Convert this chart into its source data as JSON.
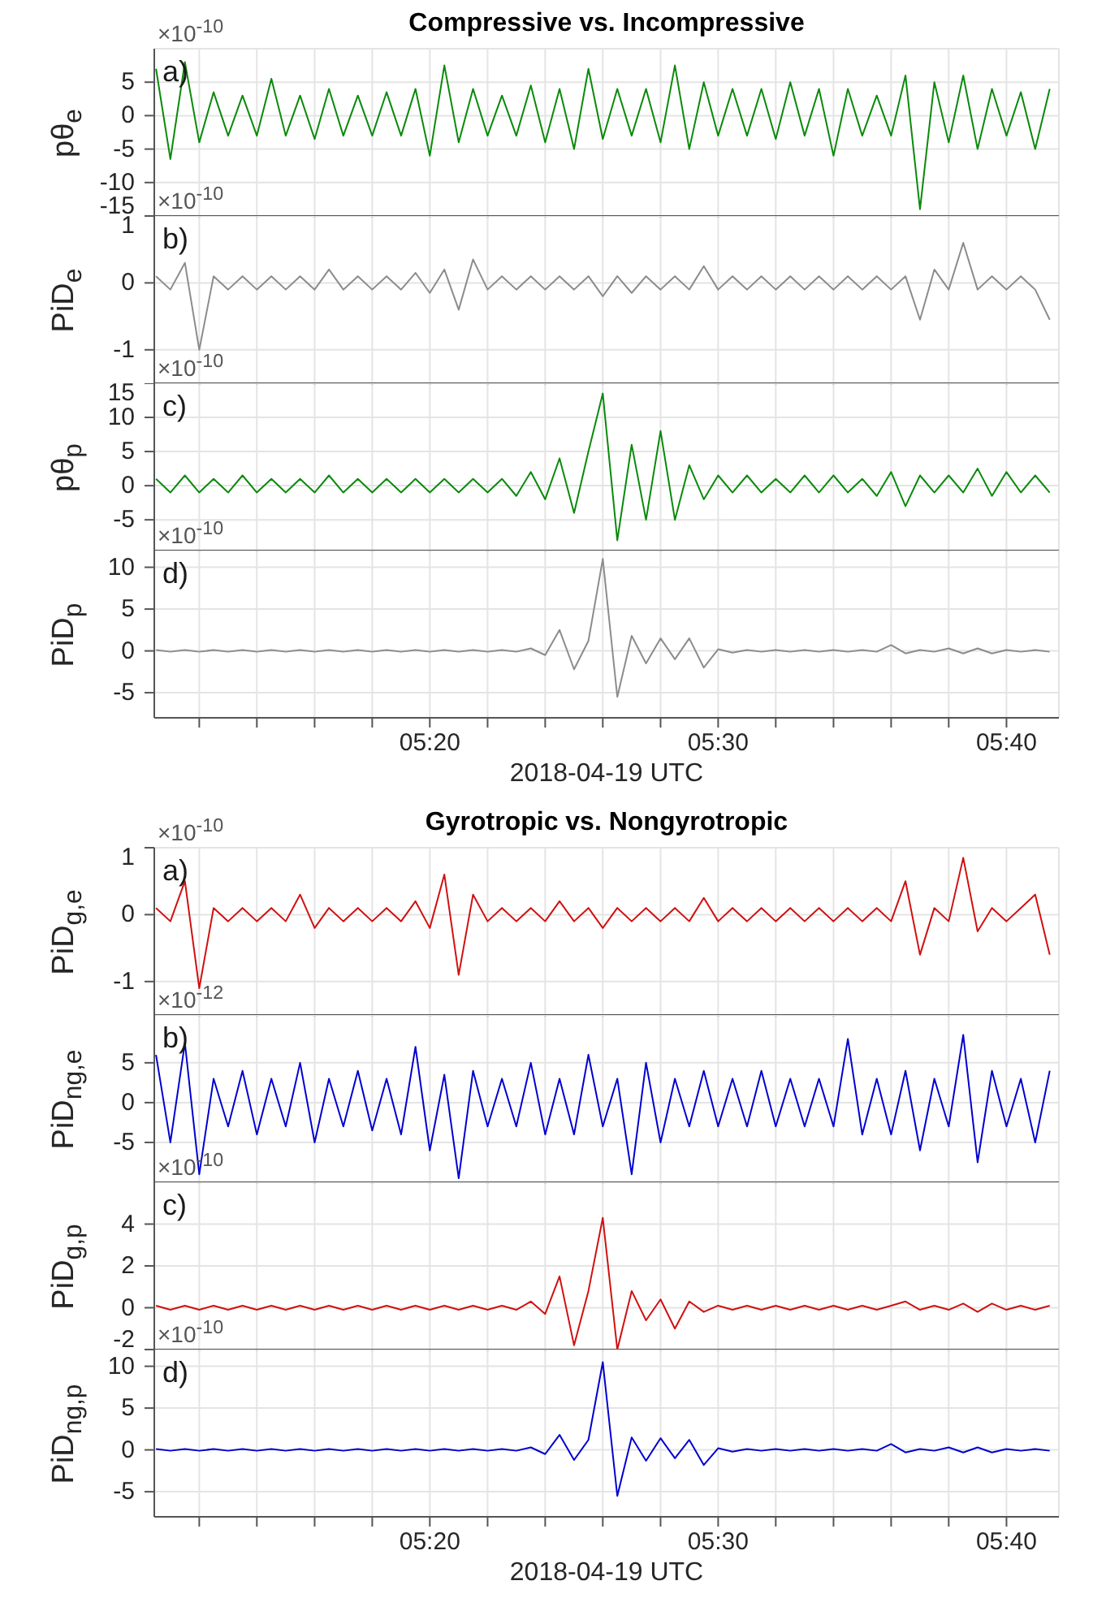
{
  "chart_data": [
    {
      "type": "line",
      "title": "Compressive vs. Incompressive",
      "ylabel": "pθ$_{e}$",
      "annotations": [
        "a)",
        "×10$^{-10}$"
      ],
      "grid": true,
      "tick_labels": "y",
      "xlim": [
        5.174,
        5.697
      ],
      "ylim": [
        -15,
        10
      ],
      "yticks": [
        -15,
        -10,
        -5,
        0,
        5
      ],
      "xticks": [
        {
          "value": 5.2,
          "label": null
        },
        {
          "value": 5.2333,
          "label": null
        },
        {
          "value": 5.2667,
          "label": null
        },
        {
          "value": 5.3,
          "label": null
        },
        {
          "value": 5.3333,
          "label": null
        },
        {
          "value": 5.3667,
          "label": null
        },
        {
          "value": 5.4,
          "label": null
        },
        {
          "value": 5.4333,
          "label": null
        },
        {
          "value": 5.4667,
          "label": null
        },
        {
          "value": 5.5,
          "label": null
        },
        {
          "value": 5.5333,
          "label": null
        },
        {
          "value": 5.5667,
          "label": null
        },
        {
          "value": 5.6,
          "label": null
        },
        {
          "value": 5.6333,
          "label": null
        },
        {
          "value": 5.6667,
          "label": null
        }
      ],
      "x": [
        5.175,
        5.1833,
        5.1917,
        5.2,
        5.2083,
        5.2167,
        5.225,
        5.2333,
        5.2417,
        5.25,
        5.2583,
        5.2667,
        5.275,
        5.2833,
        5.2917,
        5.3,
        5.3083,
        5.3167,
        5.325,
        5.3333,
        5.3417,
        5.35,
        5.3583,
        5.3667,
        5.375,
        5.3833,
        5.3917,
        5.4,
        5.4083,
        5.4167,
        5.425,
        5.4333,
        5.4417,
        5.45,
        5.4583,
        5.4667,
        5.475,
        5.4833,
        5.4917,
        5.5,
        5.5083,
        5.5167,
        5.525,
        5.5333,
        5.5417,
        5.55,
        5.5583,
        5.5667,
        5.575,
        5.5833,
        5.5917,
        5.6,
        5.6083,
        5.6167,
        5.625,
        5.6333,
        5.6417,
        5.65,
        5.6583,
        5.6667,
        5.675,
        5.6833,
        5.6917
      ],
      "series": [
        {
          "color": "#0a8a0a",
          "values": [
            7,
            -6.5,
            8,
            -4,
            3.5,
            -3,
            3,
            -3,
            5.5,
            -3,
            3,
            -3.5,
            4,
            -3,
            3,
            -3,
            3.5,
            -3,
            4,
            -6,
            7.5,
            -4,
            4,
            -3,
            3,
            -3,
            4.5,
            -4,
            4,
            -5,
            7,
            -3.5,
            4,
            -3,
            4,
            -4,
            7.5,
            -5,
            5,
            -3,
            4,
            -3,
            4,
            -3.5,
            5,
            -3,
            4,
            -6,
            4,
            -3,
            3,
            -3,
            6,
            -14,
            5,
            -4,
            6,
            -5,
            4,
            -3,
            3.5,
            -5,
            4
          ]
        }
      ]
    },
    {
      "type": "line",
      "ylabel": "PiD$_{e}$",
      "annotations": [
        "b)",
        "×10$^{-10}$"
      ],
      "grid": true,
      "tick_labels": "y",
      "xlim": [
        5.174,
        5.697
      ],
      "ylim": [
        -1.5,
        1
      ],
      "yticks": [
        -1,
        0,
        1
      ],
      "xticks": [
        {
          "value": 5.2,
          "label": null
        },
        {
          "value": 5.2333,
          "label": null
        },
        {
          "value": 5.2667,
          "label": null
        },
        {
          "value": 5.3,
          "label": null
        },
        {
          "value": 5.3333,
          "label": null
        },
        {
          "value": 5.3667,
          "label": null
        },
        {
          "value": 5.4,
          "label": null
        },
        {
          "value": 5.4333,
          "label": null
        },
        {
          "value": 5.4667,
          "label": null
        },
        {
          "value": 5.5,
          "label": null
        },
        {
          "value": 5.5333,
          "label": null
        },
        {
          "value": 5.5667,
          "label": null
        },
        {
          "value": 5.6,
          "label": null
        },
        {
          "value": 5.6333,
          "label": null
        },
        {
          "value": 5.6667,
          "label": null
        }
      ],
      "x": [
        5.175,
        5.1833,
        5.1917,
        5.2,
        5.2083,
        5.2167,
        5.225,
        5.2333,
        5.2417,
        5.25,
        5.2583,
        5.2667,
        5.275,
        5.2833,
        5.2917,
        5.3,
        5.3083,
        5.3167,
        5.325,
        5.3333,
        5.3417,
        5.35,
        5.3583,
        5.3667,
        5.375,
        5.3833,
        5.3917,
        5.4,
        5.4083,
        5.4167,
        5.425,
        5.4333,
        5.4417,
        5.45,
        5.4583,
        5.4667,
        5.475,
        5.4833,
        5.4917,
        5.5,
        5.5083,
        5.5167,
        5.525,
        5.5333,
        5.5417,
        5.55,
        5.5583,
        5.5667,
        5.575,
        5.5833,
        5.5917,
        5.6,
        5.6083,
        5.6167,
        5.625,
        5.6333,
        5.6417,
        5.65,
        5.6583,
        5.6667,
        5.675,
        5.6833,
        5.6917
      ],
      "series": [
        {
          "color": "#8c8c8c",
          "values": [
            0.1,
            -0.1,
            0.3,
            -1,
            0.1,
            -0.1,
            0.1,
            -0.1,
            0.1,
            -0.1,
            0.1,
            -0.1,
            0.2,
            -0.1,
            0.1,
            -0.1,
            0.1,
            -0.1,
            0.15,
            -0.15,
            0.2,
            -0.4,
            0.35,
            -0.1,
            0.1,
            -0.1,
            0.1,
            -0.1,
            0.1,
            -0.1,
            0.1,
            -0.2,
            0.1,
            -0.15,
            0.1,
            -0.1,
            0.1,
            -0.1,
            0.25,
            -0.1,
            0.1,
            -0.1,
            0.1,
            -0.1,
            0.1,
            -0.1,
            0.1,
            -0.1,
            0.1,
            -0.1,
            0.1,
            -0.1,
            0.1,
            -0.55,
            0.2,
            -0.1,
            0.6,
            -0.1,
            0.1,
            -0.1,
            0.1,
            -0.1,
            -0.55
          ]
        }
      ]
    },
    {
      "type": "line",
      "ylabel": "pθ$_{p}$",
      "annotations": [
        "c)",
        "×10$^{-10}$"
      ],
      "grid": true,
      "tick_labels": "y",
      "xlim": [
        5.174,
        5.697
      ],
      "ylim": [
        -9.5,
        15
      ],
      "yticks": [
        -5,
        0,
        5,
        10,
        15
      ],
      "xticks": [
        {
          "value": 5.2,
          "label": null
        },
        {
          "value": 5.2333,
          "label": null
        },
        {
          "value": 5.2667,
          "label": null
        },
        {
          "value": 5.3,
          "label": null
        },
        {
          "value": 5.3333,
          "label": null
        },
        {
          "value": 5.3667,
          "label": null
        },
        {
          "value": 5.4,
          "label": null
        },
        {
          "value": 5.4333,
          "label": null
        },
        {
          "value": 5.4667,
          "label": null
        },
        {
          "value": 5.5,
          "label": null
        },
        {
          "value": 5.5333,
          "label": null
        },
        {
          "value": 5.5667,
          "label": null
        },
        {
          "value": 5.6,
          "label": null
        },
        {
          "value": 5.6333,
          "label": null
        },
        {
          "value": 5.6667,
          "label": null
        }
      ],
      "x": [
        5.175,
        5.1833,
        5.1917,
        5.2,
        5.2083,
        5.2167,
        5.225,
        5.2333,
        5.2417,
        5.25,
        5.2583,
        5.2667,
        5.275,
        5.2833,
        5.2917,
        5.3,
        5.3083,
        5.3167,
        5.325,
        5.3333,
        5.3417,
        5.35,
        5.3583,
        5.3667,
        5.375,
        5.3833,
        5.3917,
        5.4,
        5.4083,
        5.4167,
        5.425,
        5.4333,
        5.4417,
        5.45,
        5.4583,
        5.4667,
        5.475,
        5.4833,
        5.4917,
        5.5,
        5.5083,
        5.5167,
        5.525,
        5.5333,
        5.5417,
        5.55,
        5.5583,
        5.5667,
        5.575,
        5.5833,
        5.5917,
        5.6,
        5.6083,
        5.6167,
        5.625,
        5.6333,
        5.6417,
        5.65,
        5.6583,
        5.6667,
        5.675,
        5.6833,
        5.6917
      ],
      "series": [
        {
          "color": "#0a8a0a",
          "values": [
            1,
            -1,
            1.5,
            -1,
            1,
            -1,
            1.5,
            -1,
            1,
            -1,
            1,
            -1,
            1.5,
            -1,
            1,
            -1,
            1,
            -1,
            1,
            -1,
            1,
            -1,
            1,
            -1,
            1,
            -1.5,
            2,
            -2,
            4,
            -4,
            5,
            13.5,
            -8,
            6,
            -5,
            8,
            -5,
            3,
            -2,
            1.5,
            -1,
            1.5,
            -1,
            1,
            -1,
            1.5,
            -1,
            1.5,
            -1,
            1,
            -1.5,
            2,
            -3,
            1.5,
            -1,
            1.5,
            -1,
            2.5,
            -1.5,
            2,
            -1,
            1.5,
            -1
          ]
        }
      ]
    },
    {
      "type": "line",
      "ylabel": "PiD$_{p}$",
      "xlabel": "2018-04-19 UTC",
      "annotations": [
        "d)",
        "×10$^{-10}$"
      ],
      "grid": true,
      "xlim": [
        5.174,
        5.697
      ],
      "ylim": [
        -8,
        12
      ],
      "yticks": [
        -5,
        0,
        5,
        10
      ],
      "xticks": [
        {
          "value": 5.2,
          "label": null
        },
        {
          "value": 5.2333,
          "label": null
        },
        {
          "value": 5.2667,
          "label": null
        },
        {
          "value": 5.3,
          "label": null
        },
        {
          "value": 5.3333,
          "label": "05:20"
        },
        {
          "value": 5.3667,
          "label": null
        },
        {
          "value": 5.4,
          "label": null
        },
        {
          "value": 5.4333,
          "label": null
        },
        {
          "value": 5.4667,
          "label": null
        },
        {
          "value": 5.5,
          "label": "05:30"
        },
        {
          "value": 5.5333,
          "label": null
        },
        {
          "value": 5.5667,
          "label": null
        },
        {
          "value": 5.6,
          "label": null
        },
        {
          "value": 5.6333,
          "label": null
        },
        {
          "value": 5.6667,
          "label": "05:40"
        }
      ],
      "x": [
        5.175,
        5.1833,
        5.1917,
        5.2,
        5.2083,
        5.2167,
        5.225,
        5.2333,
        5.2417,
        5.25,
        5.2583,
        5.2667,
        5.275,
        5.2833,
        5.2917,
        5.3,
        5.3083,
        5.3167,
        5.325,
        5.3333,
        5.3417,
        5.35,
        5.3583,
        5.3667,
        5.375,
        5.3833,
        5.3917,
        5.4,
        5.4083,
        5.4167,
        5.425,
        5.4333,
        5.4417,
        5.45,
        5.4583,
        5.4667,
        5.475,
        5.4833,
        5.4917,
        5.5,
        5.5083,
        5.5167,
        5.525,
        5.5333,
        5.5417,
        5.55,
        5.5583,
        5.5667,
        5.575,
        5.5833,
        5.5917,
        5.6,
        5.6083,
        5.6167,
        5.625,
        5.6333,
        5.6417,
        5.65,
        5.6583,
        5.6667,
        5.675,
        5.6833,
        5.6917
      ],
      "series": [
        {
          "color": "#8c8c8c",
          "values": [
            0.1,
            -0.1,
            0.1,
            -0.1,
            0.1,
            -0.1,
            0.1,
            -0.1,
            0.1,
            -0.1,
            0.1,
            -0.1,
            0.1,
            -0.1,
            0.1,
            -0.1,
            0.1,
            -0.1,
            0.1,
            -0.1,
            0.1,
            -0.1,
            0.1,
            -0.1,
            0.1,
            -0.1,
            0.3,
            -0.5,
            2.5,
            -2.2,
            1.2,
            11,
            -5.5,
            1.8,
            -1.5,
            1.5,
            -1,
            1.5,
            -2,
            0.2,
            -0.2,
            0.1,
            -0.1,
            0.1,
            -0.1,
            0.1,
            -0.1,
            0.1,
            -0.1,
            0.1,
            -0.1,
            0.7,
            -0.3,
            0.1,
            -0.1,
            0.3,
            -0.3,
            0.3,
            -0.3,
            0.1,
            -0.1,
            0.1,
            -0.1
          ]
        }
      ]
    },
    {
      "type": "line",
      "title": "Gyrotropic vs. Nongyrotropic",
      "ylabel": "PiD$_{g,e}$",
      "annotations": [
        "a)",
        "×10$^{-10}$"
      ],
      "grid": true,
      "tick_labels": "y",
      "xlim": [
        5.174,
        5.697
      ],
      "ylim": [
        -1.5,
        1
      ],
      "yticks": [
        -1,
        0,
        1
      ],
      "xticks": [
        {
          "value": 5.2,
          "label": null
        },
        {
          "value": 5.2333,
          "label": null
        },
        {
          "value": 5.2667,
          "label": null
        },
        {
          "value": 5.3,
          "label": null
        },
        {
          "value": 5.3333,
          "label": null
        },
        {
          "value": 5.3667,
          "label": null
        },
        {
          "value": 5.4,
          "label": null
        },
        {
          "value": 5.4333,
          "label": null
        },
        {
          "value": 5.4667,
          "label": null
        },
        {
          "value": 5.5,
          "label": null
        },
        {
          "value": 5.5333,
          "label": null
        },
        {
          "value": 5.5667,
          "label": null
        },
        {
          "value": 5.6,
          "label": null
        },
        {
          "value": 5.6333,
          "label": null
        },
        {
          "value": 5.6667,
          "label": null
        }
      ],
      "x": [
        5.175,
        5.1833,
        5.1917,
        5.2,
        5.2083,
        5.2167,
        5.225,
        5.2333,
        5.2417,
        5.25,
        5.2583,
        5.2667,
        5.275,
        5.2833,
        5.2917,
        5.3,
        5.3083,
        5.3167,
        5.325,
        5.3333,
        5.3417,
        5.35,
        5.3583,
        5.3667,
        5.375,
        5.3833,
        5.3917,
        5.4,
        5.4083,
        5.4167,
        5.425,
        5.4333,
        5.4417,
        5.45,
        5.4583,
        5.4667,
        5.475,
        5.4833,
        5.4917,
        5.5,
        5.5083,
        5.5167,
        5.525,
        5.5333,
        5.5417,
        5.55,
        5.5583,
        5.5667,
        5.575,
        5.5833,
        5.5917,
        5.6,
        5.6083,
        5.6167,
        5.625,
        5.6333,
        5.6417,
        5.65,
        5.6583,
        5.6667,
        5.675,
        5.6833,
        5.6917
      ],
      "series": [
        {
          "color": "#d11010",
          "values": [
            0.1,
            -0.1,
            0.5,
            -1.1,
            0.1,
            -0.1,
            0.1,
            -0.1,
            0.1,
            -0.1,
            0.3,
            -0.2,
            0.1,
            -0.1,
            0.1,
            -0.1,
            0.1,
            -0.1,
            0.2,
            -0.2,
            0.6,
            -0.9,
            0.3,
            -0.1,
            0.1,
            -0.1,
            0.1,
            -0.1,
            0.2,
            -0.1,
            0.1,
            -0.2,
            0.1,
            -0.1,
            0.1,
            -0.1,
            0.1,
            -0.1,
            0.25,
            -0.1,
            0.1,
            -0.1,
            0.1,
            -0.1,
            0.1,
            -0.1,
            0.1,
            -0.1,
            0.1,
            -0.1,
            0.1,
            -0.1,
            0.5,
            -0.6,
            0.1,
            -0.1,
            0.85,
            -0.25,
            0.1,
            -0.1,
            0.1,
            0.3,
            -0.6
          ]
        }
      ]
    },
    {
      "type": "line",
      "ylabel": "PiD$_{ng,e}$",
      "annotations": [
        "b)",
        "×10$^{-12}$"
      ],
      "grid": true,
      "tick_labels": "y",
      "xlim": [
        5.174,
        5.697
      ],
      "ylim": [
        -10,
        11
      ],
      "yticks": [
        -5,
        0,
        5
      ],
      "xticks": [
        {
          "value": 5.2,
          "label": null
        },
        {
          "value": 5.2333,
          "label": null
        },
        {
          "value": 5.2667,
          "label": null
        },
        {
          "value": 5.3,
          "label": null
        },
        {
          "value": 5.3333,
          "label": null
        },
        {
          "value": 5.3667,
          "label": null
        },
        {
          "value": 5.4,
          "label": null
        },
        {
          "value": 5.4333,
          "label": null
        },
        {
          "value": 5.4667,
          "label": null
        },
        {
          "value": 5.5,
          "label": null
        },
        {
          "value": 5.5333,
          "label": null
        },
        {
          "value": 5.5667,
          "label": null
        },
        {
          "value": 5.6,
          "label": null
        },
        {
          "value": 5.6333,
          "label": null
        },
        {
          "value": 5.6667,
          "label": null
        }
      ],
      "x": [
        5.175,
        5.1833,
        5.1917,
        5.2,
        5.2083,
        5.2167,
        5.225,
        5.2333,
        5.2417,
        5.25,
        5.2583,
        5.2667,
        5.275,
        5.2833,
        5.2917,
        5.3,
        5.3083,
        5.3167,
        5.325,
        5.3333,
        5.3417,
        5.35,
        5.3583,
        5.3667,
        5.375,
        5.3833,
        5.3917,
        5.4,
        5.4083,
        5.4167,
        5.425,
        5.4333,
        5.4417,
        5.45,
        5.4583,
        5.4667,
        5.475,
        5.4833,
        5.4917,
        5.5,
        5.5083,
        5.5167,
        5.525,
        5.5333,
        5.5417,
        5.55,
        5.5583,
        5.5667,
        5.575,
        5.5833,
        5.5917,
        5.6,
        5.6083,
        5.6167,
        5.625,
        5.6333,
        5.6417,
        5.65,
        5.6583,
        5.6667,
        5.675,
        5.6833,
        5.6917
      ],
      "series": [
        {
          "color": "#0000d0",
          "values": [
            6,
            -5,
            7.5,
            -9,
            3,
            -3,
            4,
            -4,
            3,
            -3,
            5,
            -5,
            3,
            -3,
            4,
            -3.5,
            3,
            -4,
            7,
            -6,
            3.5,
            -9.5,
            4,
            -3,
            3,
            -3,
            5,
            -4,
            3,
            -4,
            6,
            -3,
            3,
            -9,
            5,
            -5,
            3,
            -3,
            4,
            -3,
            3,
            -3,
            4,
            -3,
            3,
            -3,
            3,
            -3,
            8,
            -4,
            3,
            -4,
            4,
            -6,
            3,
            -3,
            8.5,
            -7.5,
            4,
            -3,
            3,
            -5,
            4
          ]
        }
      ]
    },
    {
      "type": "line",
      "ylabel": "PiD$_{g,p}$",
      "annotations": [
        "c)",
        "×10$^{-10}$"
      ],
      "grid": true,
      "tick_labels": "y",
      "xlim": [
        5.174,
        5.697
      ],
      "ylim": [
        -2,
        6
      ],
      "yticks": [
        -2,
        0,
        2,
        4
      ],
      "xticks": [
        {
          "value": 5.2,
          "label": null
        },
        {
          "value": 5.2333,
          "label": null
        },
        {
          "value": 5.2667,
          "label": null
        },
        {
          "value": 5.3,
          "label": null
        },
        {
          "value": 5.3333,
          "label": null
        },
        {
          "value": 5.3667,
          "label": null
        },
        {
          "value": 5.4,
          "label": null
        },
        {
          "value": 5.4333,
          "label": null
        },
        {
          "value": 5.4667,
          "label": null
        },
        {
          "value": 5.5,
          "label": null
        },
        {
          "value": 5.5333,
          "label": null
        },
        {
          "value": 5.5667,
          "label": null
        },
        {
          "value": 5.6,
          "label": null
        },
        {
          "value": 5.6333,
          "label": null
        },
        {
          "value": 5.6667,
          "label": null
        }
      ],
      "x": [
        5.175,
        5.1833,
        5.1917,
        5.2,
        5.2083,
        5.2167,
        5.225,
        5.2333,
        5.2417,
        5.25,
        5.2583,
        5.2667,
        5.275,
        5.2833,
        5.2917,
        5.3,
        5.3083,
        5.3167,
        5.325,
        5.3333,
        5.3417,
        5.35,
        5.3583,
        5.3667,
        5.375,
        5.3833,
        5.3917,
        5.4,
        5.4083,
        5.4167,
        5.425,
        5.4333,
        5.4417,
        5.45,
        5.4583,
        5.4667,
        5.475,
        5.4833,
        5.4917,
        5.5,
        5.5083,
        5.5167,
        5.525,
        5.5333,
        5.5417,
        5.55,
        5.5583,
        5.5667,
        5.575,
        5.5833,
        5.5917,
        5.6,
        5.6083,
        5.6167,
        5.625,
        5.6333,
        5.6417,
        5.65,
        5.6583,
        5.6667,
        5.675,
        5.6833,
        5.6917
      ],
      "series": [
        {
          "color": "#d11010",
          "values": [
            0.1,
            -0.1,
            0.1,
            -0.1,
            0.1,
            -0.1,
            0.1,
            -0.1,
            0.1,
            -0.1,
            0.1,
            -0.1,
            0.1,
            -0.1,
            0.1,
            -0.1,
            0.1,
            -0.1,
            0.1,
            -0.1,
            0.1,
            -0.1,
            0.1,
            -0.1,
            0.1,
            -0.1,
            0.3,
            -0.3,
            1.5,
            -1.8,
            0.8,
            4.3,
            -2,
            0.8,
            -0.6,
            0.4,
            -1,
            0.3,
            -0.2,
            0.1,
            -0.1,
            0.1,
            -0.1,
            0.1,
            -0.1,
            0.1,
            -0.1,
            0.1,
            -0.1,
            0.1,
            -0.1,
            0.1,
            0.3,
            -0.1,
            0.1,
            -0.1,
            0.2,
            -0.2,
            0.2,
            -0.1,
            0.1,
            -0.1,
            0.1
          ]
        }
      ]
    },
    {
      "type": "line",
      "ylabel": "PiD$_{ng,p}$",
      "xlabel": "2018-04-19 UTC",
      "annotations": [
        "d)",
        "×10$^{-10}$"
      ],
      "grid": true,
      "xlim": [
        5.174,
        5.697
      ],
      "ylim": [
        -8,
        12
      ],
      "yticks": [
        -5,
        0,
        5,
        10
      ],
      "xticks": [
        {
          "value": 5.2,
          "label": null
        },
        {
          "value": 5.2333,
          "label": null
        },
        {
          "value": 5.2667,
          "label": null
        },
        {
          "value": 5.3,
          "label": null
        },
        {
          "value": 5.3333,
          "label": "05:20"
        },
        {
          "value": 5.3667,
          "label": null
        },
        {
          "value": 5.4,
          "label": null
        },
        {
          "value": 5.4333,
          "label": null
        },
        {
          "value": 5.4667,
          "label": null
        },
        {
          "value": 5.5,
          "label": "05:30"
        },
        {
          "value": 5.5333,
          "label": null
        },
        {
          "value": 5.5667,
          "label": null
        },
        {
          "value": 5.6,
          "label": null
        },
        {
          "value": 5.6333,
          "label": null
        },
        {
          "value": 5.6667,
          "label": "05:40"
        }
      ],
      "x": [
        5.175,
        5.1833,
        5.1917,
        5.2,
        5.2083,
        5.2167,
        5.225,
        5.2333,
        5.2417,
        5.25,
        5.2583,
        5.2667,
        5.275,
        5.2833,
        5.2917,
        5.3,
        5.3083,
        5.3167,
        5.325,
        5.3333,
        5.3417,
        5.35,
        5.3583,
        5.3667,
        5.375,
        5.3833,
        5.3917,
        5.4,
        5.4083,
        5.4167,
        5.425,
        5.4333,
        5.4417,
        5.45,
        5.4583,
        5.4667,
        5.475,
        5.4833,
        5.4917,
        5.5,
        5.5083,
        5.5167,
        5.525,
        5.5333,
        5.5417,
        5.55,
        5.5583,
        5.5667,
        5.575,
        5.5833,
        5.5917,
        5.6,
        5.6083,
        5.6167,
        5.625,
        5.6333,
        5.6417,
        5.65,
        5.6583,
        5.6667,
        5.675,
        5.6833,
        5.6917
      ],
      "series": [
        {
          "color": "#0000d0",
          "values": [
            0.1,
            -0.1,
            0.1,
            -0.1,
            0.1,
            -0.1,
            0.1,
            -0.1,
            0.1,
            -0.1,
            0.1,
            -0.1,
            0.1,
            -0.1,
            0.1,
            -0.1,
            0.1,
            -0.1,
            0.1,
            -0.1,
            0.1,
            -0.1,
            0.1,
            -0.1,
            0.1,
            -0.1,
            0.3,
            -0.5,
            1.8,
            -1.2,
            1.2,
            10.5,
            -5.5,
            1.5,
            -1.3,
            1.4,
            -1,
            1.2,
            -1.8,
            0.2,
            -0.2,
            0.1,
            -0.1,
            0.1,
            -0.1,
            0.1,
            -0.1,
            0.1,
            -0.1,
            0.1,
            -0.1,
            0.7,
            -0.3,
            0.1,
            -0.1,
            0.3,
            -0.3,
            0.3,
            -0.3,
            0.1,
            -0.1,
            0.1,
            -0.1
          ]
        }
      ]
    }
  ]
}
